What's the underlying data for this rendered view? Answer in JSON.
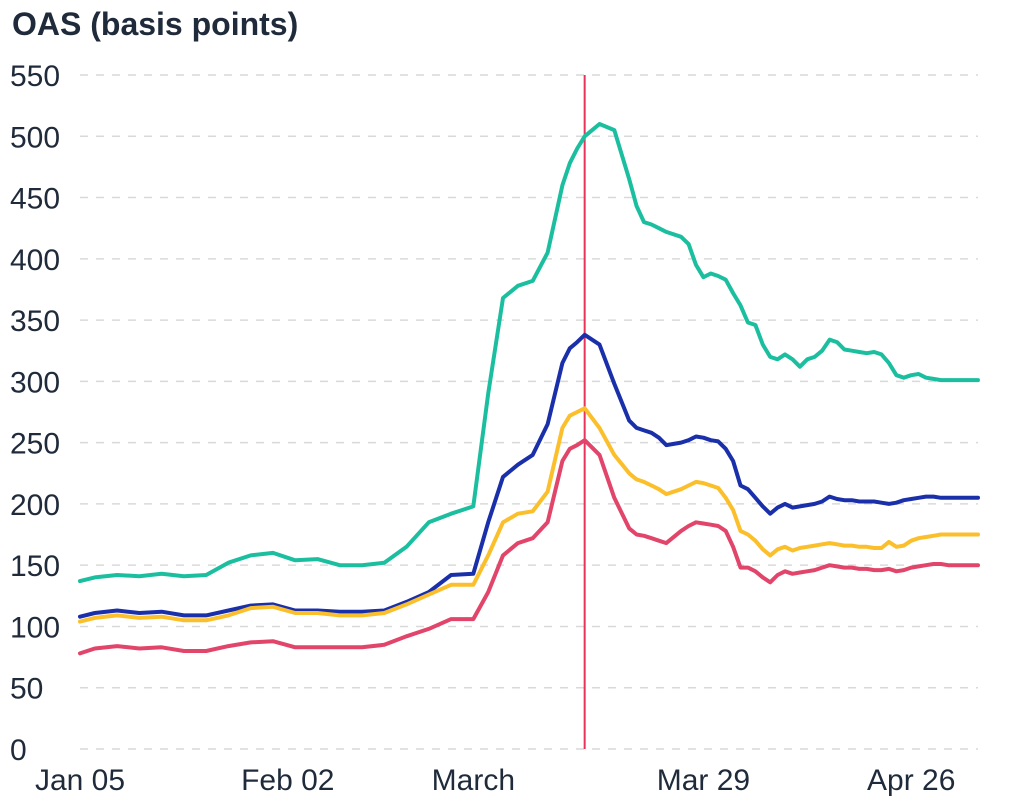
{
  "chart_data": {
    "type": "line",
    "title": "OAS (basis points)",
    "ylim": [
      0,
      550
    ],
    "yticks": [
      0,
      50,
      100,
      150,
      200,
      250,
      300,
      350,
      400,
      450,
      500,
      550
    ],
    "xticks": [
      {
        "x": 0,
        "label": "Jan 05"
      },
      {
        "x": 28,
        "label": "Feb 02"
      },
      {
        "x": 53,
        "label": "March"
      },
      {
        "x": 84,
        "label": "Mar 29"
      },
      {
        "x": 112,
        "label": "Apr 26"
      }
    ],
    "xlim": [
      0,
      121
    ],
    "grid": true,
    "vline": {
      "x": 68,
      "color": "#e8345a"
    },
    "series": [
      {
        "color": "#1bbf9f",
        "x": [
          0,
          2,
          5,
          8,
          11,
          14,
          17,
          20,
          23,
          26,
          29,
          32,
          35,
          38,
          41,
          44,
          47,
          50,
          53,
          55,
          57,
          59,
          61,
          63,
          65,
          66,
          67,
          68,
          70,
          72,
          74,
          75,
          76,
          77,
          78,
          79,
          81,
          82,
          83,
          84,
          85,
          86,
          87,
          88,
          89,
          90,
          91,
          92,
          93,
          94,
          95,
          96,
          97,
          98,
          99,
          100,
          101,
          102,
          103,
          104,
          105,
          106,
          107,
          108,
          109,
          110,
          111,
          112,
          113,
          114,
          115,
          116,
          117,
          118,
          119,
          120,
          121
        ],
        "values": [
          137,
          140,
          142,
          141,
          143,
          141,
          142,
          152,
          158,
          160,
          154,
          155,
          150,
          150,
          152,
          165,
          185,
          192,
          198,
          290,
          368,
          378,
          382,
          405,
          460,
          478,
          490,
          500,
          510,
          505,
          465,
          443,
          430,
          428,
          425,
          422,
          418,
          412,
          395,
          385,
          388,
          386,
          383,
          372,
          362,
          348,
          346,
          330,
          320,
          318,
          322,
          318,
          312,
          318,
          320,
          325,
          334,
          332,
          326,
          325,
          324,
          323,
          324,
          322,
          315,
          305,
          303,
          305,
          306,
          303,
          302,
          301,
          301,
          301,
          301,
          301,
          301
        ]
      },
      {
        "color": "#1a2faa",
        "x": [
          0,
          2,
          5,
          8,
          11,
          14,
          17,
          20,
          23,
          26,
          29,
          32,
          35,
          38,
          41,
          44,
          47,
          50,
          53,
          55,
          57,
          59,
          61,
          63,
          65,
          66,
          67,
          68,
          70,
          72,
          74,
          75,
          76,
          77,
          78,
          79,
          81,
          82,
          83,
          84,
          85,
          86,
          87,
          88,
          89,
          90,
          91,
          92,
          93,
          94,
          95,
          96,
          97,
          98,
          99,
          100,
          101,
          102,
          103,
          104,
          105,
          106,
          107,
          108,
          109,
          110,
          111,
          112,
          113,
          114,
          115,
          116,
          117,
          118,
          119,
          120,
          121
        ],
        "values": [
          108,
          111,
          113,
          111,
          112,
          109,
          109,
          113,
          117,
          118,
          113,
          113,
          112,
          112,
          113,
          120,
          128,
          142,
          143,
          185,
          222,
          232,
          240,
          265,
          315,
          327,
          332,
          338,
          330,
          298,
          268,
          262,
          260,
          258,
          254,
          248,
          250,
          252,
          255,
          254,
          252,
          251,
          245,
          235,
          215,
          212,
          205,
          198,
          192,
          197,
          200,
          197,
          198,
          199,
          200,
          202,
          206,
          204,
          203,
          203,
          202,
          202,
          202,
          201,
          200,
          201,
          203,
          204,
          205,
          206,
          206,
          205,
          205,
          205,
          205,
          205,
          205
        ]
      },
      {
        "color": "#fbbf2c",
        "x": [
          0,
          2,
          5,
          8,
          11,
          14,
          17,
          20,
          23,
          26,
          29,
          32,
          35,
          38,
          41,
          44,
          47,
          50,
          53,
          55,
          57,
          59,
          61,
          63,
          65,
          66,
          67,
          68,
          70,
          72,
          74,
          75,
          76,
          77,
          78,
          79,
          81,
          82,
          83,
          84,
          85,
          86,
          87,
          88,
          89,
          90,
          91,
          92,
          93,
          94,
          95,
          96,
          97,
          98,
          99,
          100,
          101,
          102,
          103,
          104,
          105,
          106,
          107,
          108,
          109,
          110,
          111,
          112,
          113,
          114,
          115,
          116,
          117,
          118,
          119,
          120,
          121
        ],
        "values": [
          104,
          107,
          109,
          107,
          108,
          105,
          105,
          109,
          115,
          116,
          111,
          111,
          109,
          109,
          111,
          118,
          126,
          134,
          134,
          158,
          185,
          192,
          194,
          210,
          262,
          272,
          275,
          278,
          262,
          240,
          225,
          220,
          218,
          215,
          212,
          208,
          212,
          215,
          218,
          217,
          215,
          213,
          205,
          195,
          178,
          175,
          170,
          163,
          158,
          163,
          165,
          162,
          164,
          165,
          166,
          167,
          168,
          167,
          166,
          166,
          165,
          165,
          164,
          164,
          169,
          165,
          166,
          170,
          172,
          173,
          174,
          175,
          175,
          175,
          175,
          175,
          175
        ]
      },
      {
        "color": "#e2456a",
        "x": [
          0,
          2,
          5,
          8,
          11,
          14,
          17,
          20,
          23,
          26,
          29,
          32,
          35,
          38,
          41,
          44,
          47,
          50,
          53,
          55,
          57,
          59,
          61,
          63,
          65,
          66,
          67,
          68,
          70,
          72,
          74,
          75,
          76,
          77,
          78,
          79,
          81,
          82,
          83,
          84,
          85,
          86,
          87,
          88,
          89,
          90,
          91,
          92,
          93,
          94,
          95,
          96,
          97,
          98,
          99,
          100,
          101,
          102,
          103,
          104,
          105,
          106,
          107,
          108,
          109,
          110,
          111,
          112,
          113,
          114,
          115,
          116,
          117,
          118,
          119,
          120,
          121
        ],
        "values": [
          78,
          82,
          84,
          82,
          83,
          80,
          80,
          84,
          87,
          88,
          83,
          83,
          83,
          83,
          85,
          92,
          98,
          106,
          106,
          128,
          158,
          168,
          172,
          185,
          235,
          245,
          248,
          252,
          240,
          205,
          180,
          175,
          174,
          172,
          170,
          168,
          178,
          182,
          185,
          184,
          183,
          182,
          178,
          165,
          148,
          148,
          145,
          140,
          136,
          142,
          145,
          143,
          144,
          145,
          146,
          148,
          150,
          149,
          148,
          148,
          147,
          147,
          146,
          146,
          147,
          145,
          146,
          148,
          149,
          150,
          151,
          151,
          150,
          150,
          150,
          150,
          150
        ]
      }
    ]
  }
}
